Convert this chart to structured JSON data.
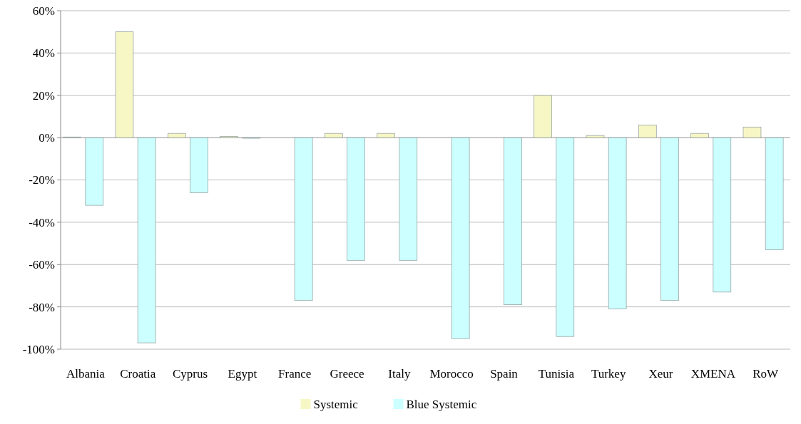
{
  "chart_data": {
    "type": "bar",
    "categories": [
      "Albania",
      "Croatia",
      "Cyprus",
      "Egypt",
      "France",
      "Greece",
      "Italy",
      "Morocco",
      "Spain",
      "Tunisia",
      "Turkey",
      "Xeur",
      "XMENA",
      "RoW"
    ],
    "series": [
      {
        "name": "Systemic",
        "color": "#f7f7c6",
        "values": [
          0.3,
          50,
          2,
          0.5,
          0,
          2,
          2,
          0,
          0,
          20,
          1,
          6,
          2,
          5
        ]
      },
      {
        "name": "Blue Systemic",
        "color": "#ccffff",
        "values": [
          -32,
          -97,
          -26,
          -0.3,
          -77,
          -58,
          -58,
          -95,
          -79,
          -94,
          -81,
          -77,
          -73,
          -53
        ]
      }
    ],
    "ylim": [
      -100,
      60
    ],
    "yticks": [
      {
        "value": -100,
        "label": "-100%"
      },
      {
        "value": -80,
        "label": "-80%"
      },
      {
        "value": -60,
        "label": "-60%"
      },
      {
        "value": -40,
        "label": "-40%"
      },
      {
        "value": -20,
        "label": "-20%"
      },
      {
        "value": 0,
        "label": "0%"
      },
      {
        "value": 20,
        "label": "20%"
      },
      {
        "value": 40,
        "label": "40%"
      },
      {
        "value": 60,
        "label": "60%"
      }
    ],
    "grid": "y",
    "legend": "bottom"
  }
}
